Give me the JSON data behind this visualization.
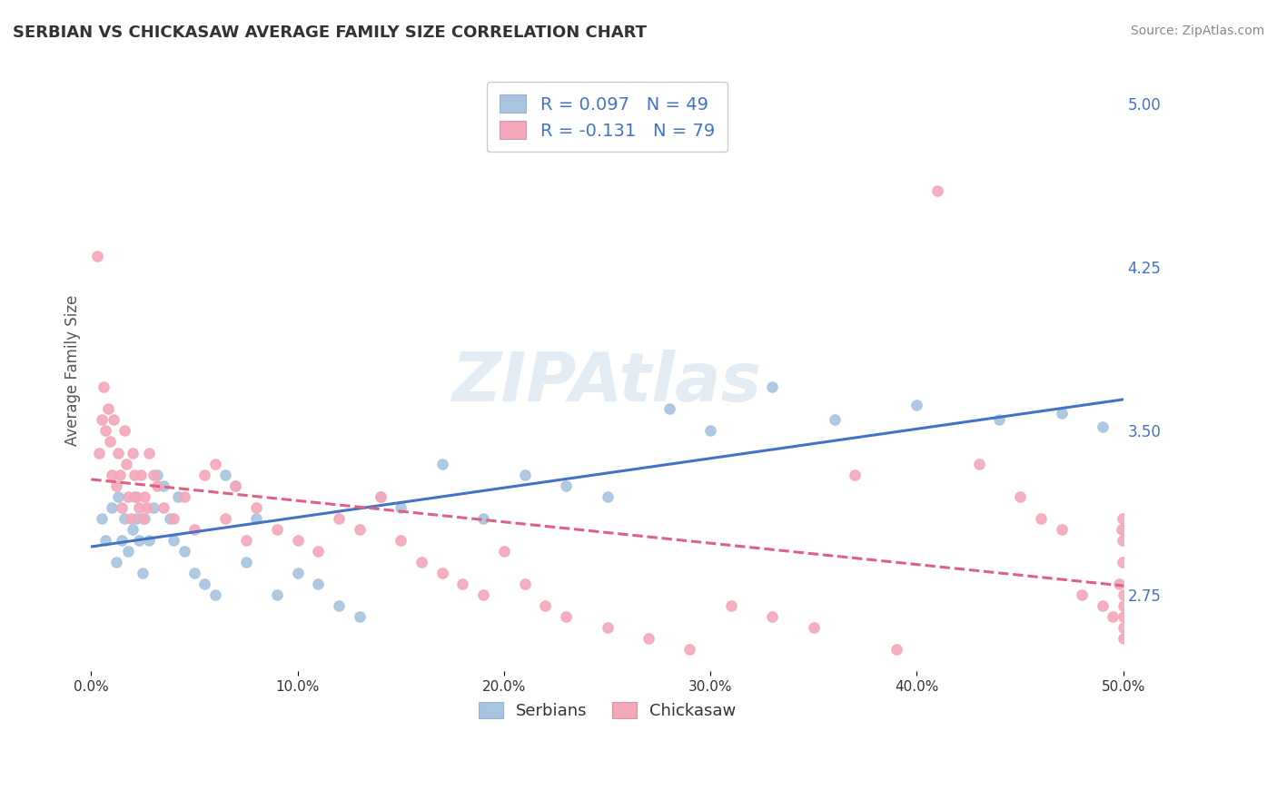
{
  "title": "SERBIAN VS CHICKASAW AVERAGE FAMILY SIZE CORRELATION CHART",
  "source_text": "Source: ZipAtlas.com",
  "ylabel": "Average Family Size",
  "ylim": [
    2.4,
    5.15
  ],
  "xlim": [
    0.0,
    50.0
  ],
  "yticks": [
    2.75,
    3.5,
    4.25,
    5.0
  ],
  "xticks": [
    0.0,
    10.0,
    20.0,
    30.0,
    40.0,
    50.0
  ],
  "xtick_labels": [
    "0.0%",
    "10.0%",
    "20.0%",
    "30.0%",
    "40.0%",
    "50.0%"
  ],
  "serbian_color": "#a8c4e0",
  "chickasaw_color": "#f4a7b9",
  "serbian_line_color": "#4472c4",
  "chickasaw_line_color": "#e06080",
  "axis_label_color": "#4472c4",
  "title_color": "#333333",
  "legend_text_color": "#4472c4",
  "watermark": "ZIPAtlas",
  "serbian_R": 0.097,
  "serbian_N": 49,
  "chickasaw_R": -0.131,
  "chickasaw_N": 79,
  "serbian_x": [
    0.5,
    0.7,
    1.0,
    1.2,
    1.3,
    1.5,
    1.6,
    1.8,
    2.0,
    2.1,
    2.2,
    2.3,
    2.5,
    2.6,
    2.8,
    3.0,
    3.2,
    3.5,
    3.8,
    4.0,
    4.2,
    4.5,
    5.0,
    5.5,
    6.0,
    6.5,
    7.0,
    7.5,
    8.0,
    9.0,
    10.0,
    11.0,
    12.0,
    13.0,
    14.0,
    15.0,
    17.0,
    19.0,
    21.0,
    23.0,
    25.0,
    28.0,
    30.0,
    33.0,
    36.0,
    40.0,
    44.0,
    47.0,
    49.0
  ],
  "serbian_y": [
    3.1,
    3.0,
    3.15,
    2.9,
    3.2,
    3.0,
    3.1,
    2.95,
    3.05,
    3.2,
    3.1,
    3.0,
    2.85,
    3.1,
    3.0,
    3.15,
    3.3,
    3.25,
    3.1,
    3.0,
    3.2,
    2.95,
    2.85,
    2.8,
    2.75,
    3.3,
    3.25,
    2.9,
    3.1,
    2.75,
    2.85,
    2.8,
    2.7,
    2.65,
    3.2,
    3.15,
    3.35,
    3.1,
    3.3,
    3.25,
    3.2,
    3.6,
    3.5,
    3.7,
    3.55,
    3.62,
    3.55,
    3.58,
    3.52
  ],
  "chickasaw_x": [
    0.3,
    0.4,
    0.5,
    0.6,
    0.7,
    0.8,
    0.9,
    1.0,
    1.1,
    1.2,
    1.3,
    1.4,
    1.5,
    1.6,
    1.7,
    1.8,
    1.9,
    2.0,
    2.1,
    2.2,
    2.3,
    2.4,
    2.5,
    2.6,
    2.7,
    2.8,
    3.0,
    3.2,
    3.5,
    4.0,
    4.5,
    5.0,
    5.5,
    6.0,
    6.5,
    7.0,
    7.5,
    8.0,
    9.0,
    10.0,
    11.0,
    12.0,
    13.0,
    14.0,
    15.0,
    16.0,
    17.0,
    18.0,
    19.0,
    20.0,
    21.0,
    22.0,
    23.0,
    25.0,
    27.0,
    29.0,
    31.0,
    33.0,
    35.0,
    37.0,
    39.0,
    41.0,
    43.0,
    45.0,
    46.0,
    47.0,
    48.0,
    49.0,
    49.5,
    49.8,
    49.9,
    49.95,
    49.97,
    49.98,
    49.99,
    50.0,
    50.01,
    50.02,
    50.03
  ],
  "chickasaw_y": [
    4.3,
    3.4,
    3.55,
    3.7,
    3.5,
    3.6,
    3.45,
    3.3,
    3.55,
    3.25,
    3.4,
    3.3,
    3.15,
    3.5,
    3.35,
    3.2,
    3.1,
    3.4,
    3.3,
    3.2,
    3.15,
    3.3,
    3.1,
    3.2,
    3.15,
    3.4,
    3.3,
    3.25,
    3.15,
    3.1,
    3.2,
    3.05,
    3.3,
    3.35,
    3.1,
    3.25,
    3.0,
    3.15,
    3.05,
    3.0,
    2.95,
    3.1,
    3.05,
    3.2,
    3.0,
    2.9,
    2.85,
    2.8,
    2.75,
    2.95,
    2.8,
    2.7,
    2.65,
    2.6,
    2.55,
    2.5,
    2.7,
    2.65,
    2.6,
    3.3,
    2.5,
    4.6,
    3.35,
    3.2,
    3.1,
    3.05,
    2.75,
    2.7,
    2.65,
    2.8,
    3.05,
    3.1,
    3.0,
    2.9,
    2.75,
    2.7,
    2.65,
    2.6,
    2.55
  ]
}
